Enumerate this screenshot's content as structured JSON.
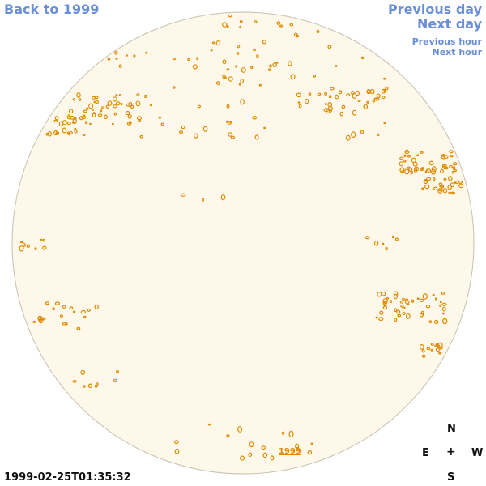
{
  "nav": {
    "back": "Back to 1999",
    "previous_day": "Previous day",
    "next_day": "Next day",
    "previous_hour": "Previous hour",
    "next_hour": "Next hour"
  },
  "timestamp": "1999-02-25T01:35:32",
  "compass": {
    "north": "N",
    "east": "E",
    "center": "+",
    "west": "W",
    "south": "S"
  },
  "year_link": "1999",
  "colors": {
    "disk_fill": "#fdf8ea",
    "disk_stroke": "#c8c0b0",
    "feature": "#e08a00",
    "nav": "#6a8fd8"
  }
}
